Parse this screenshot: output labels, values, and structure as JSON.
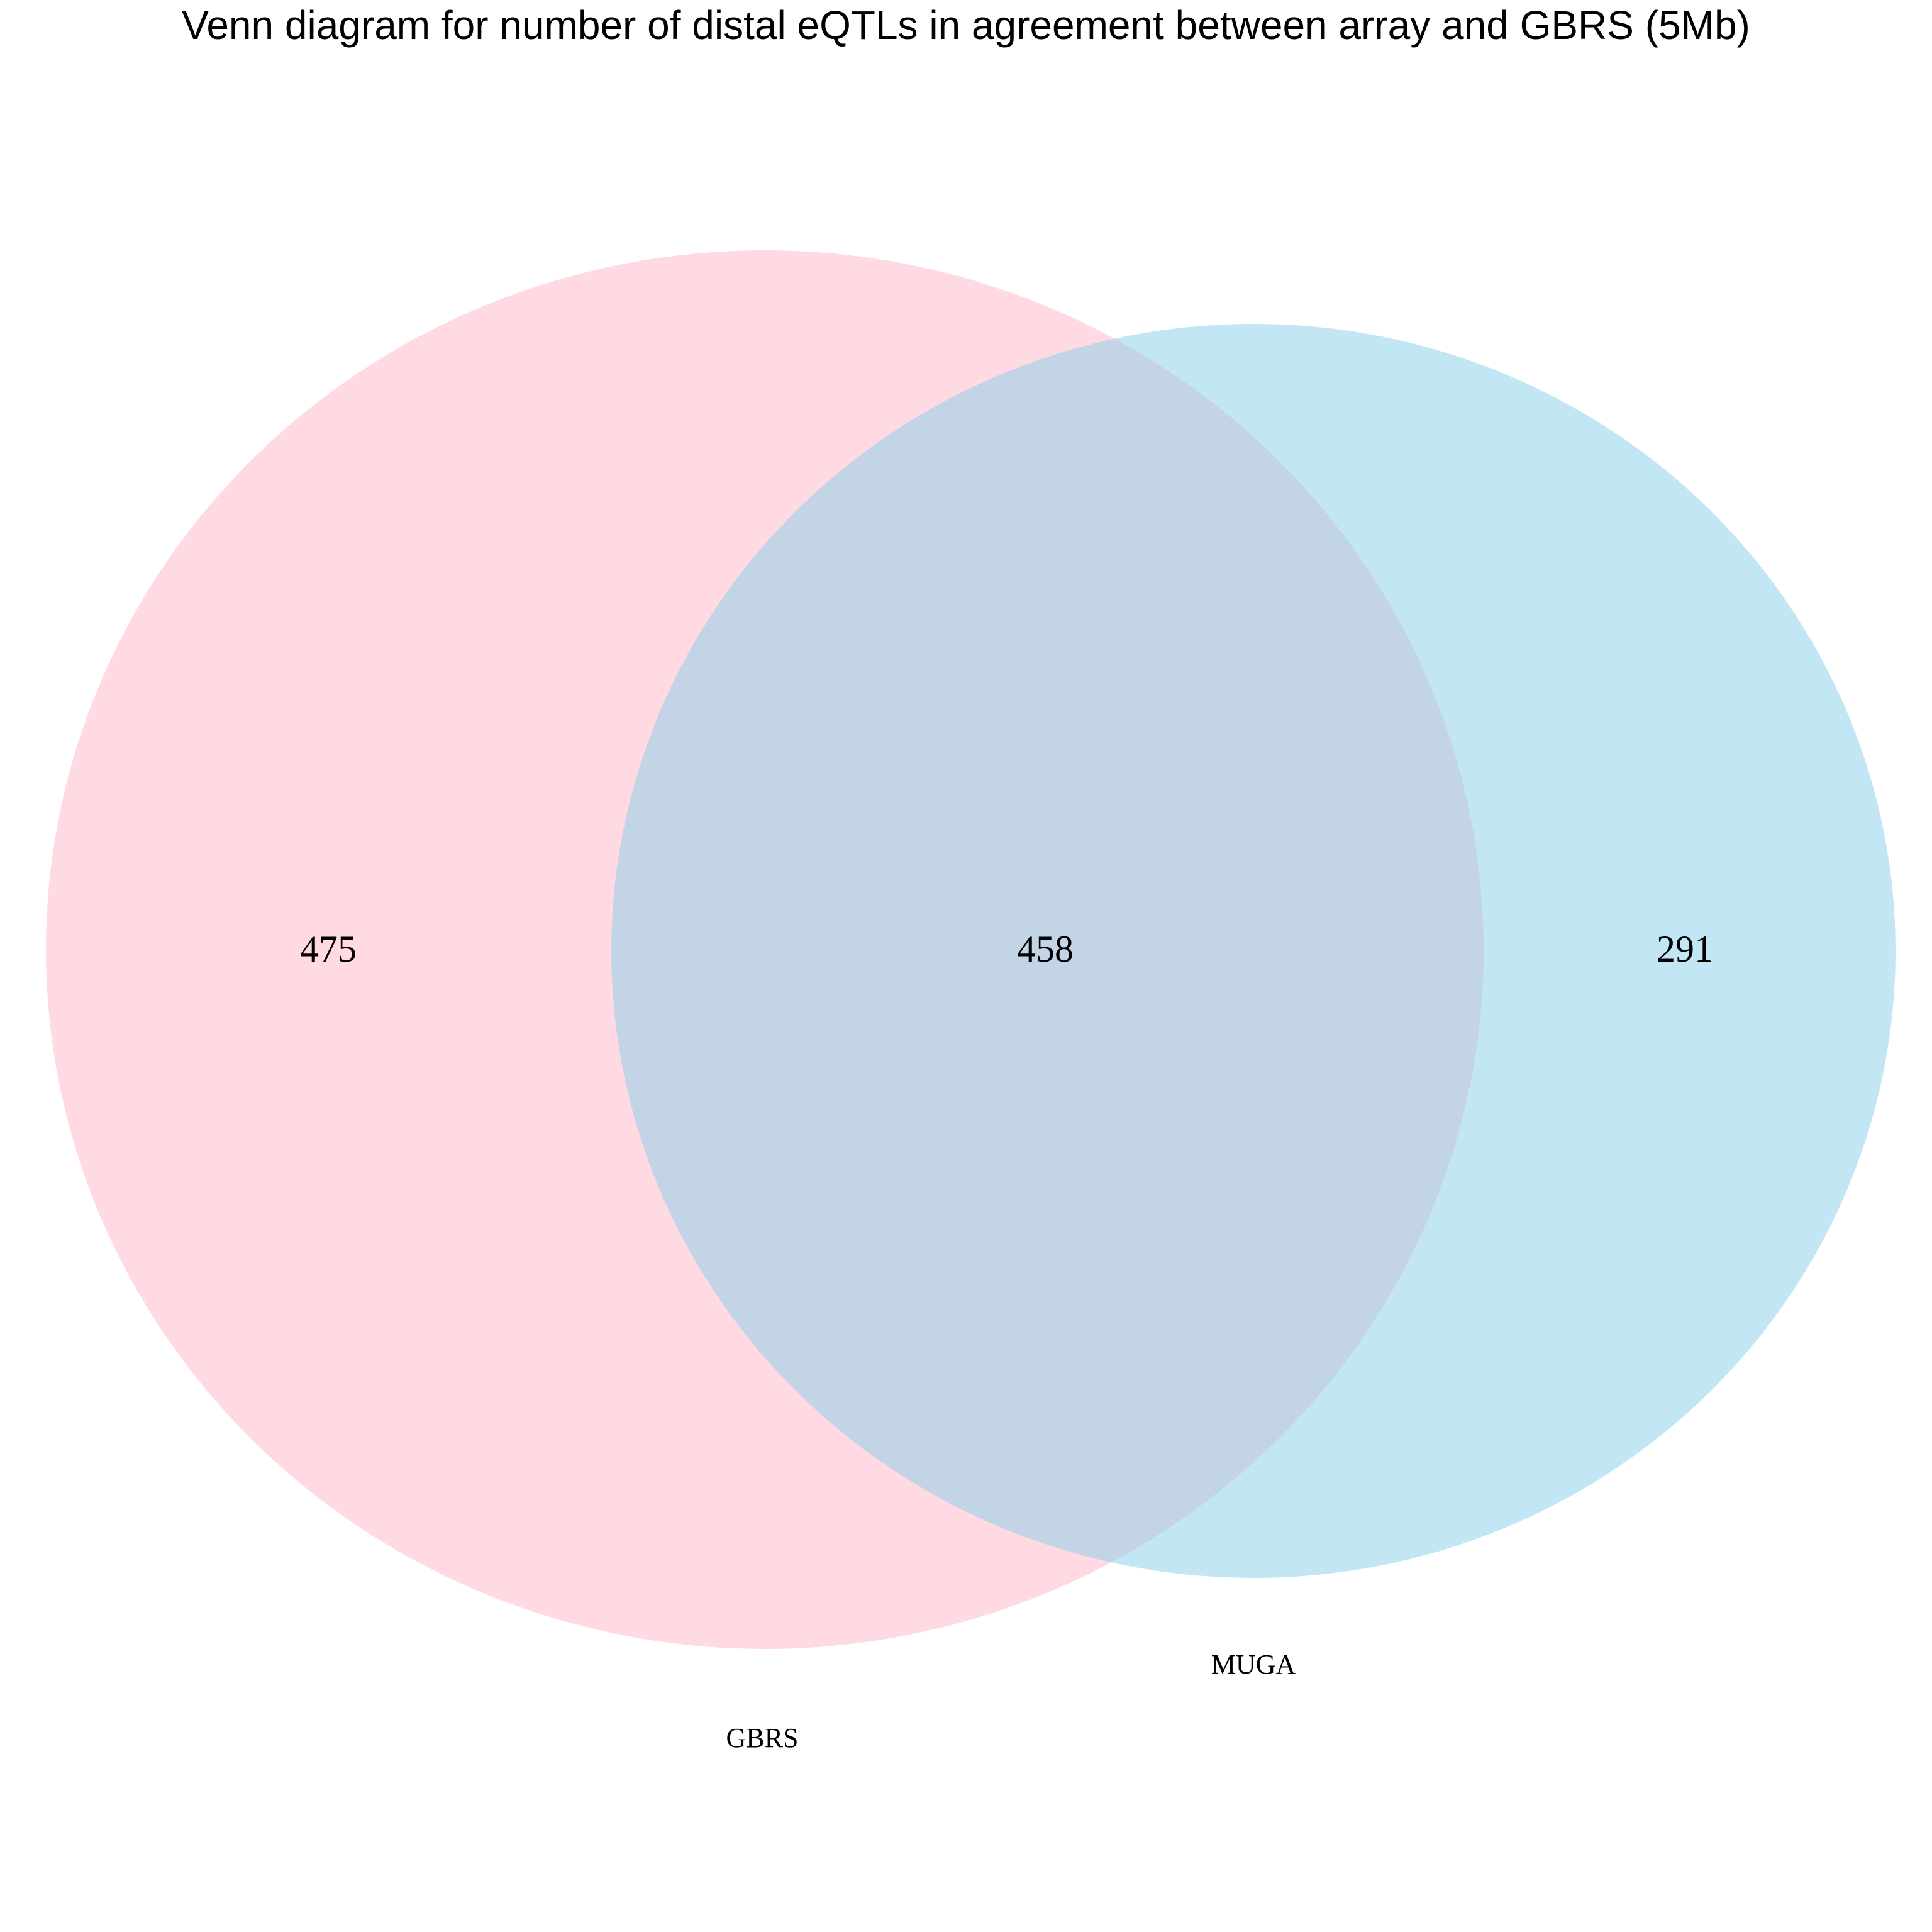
{
  "title": "Venn diagram for number of distal eQTLs in agreement between array and GBRS (5Mb)",
  "sets": [
    {
      "label": "GBRS",
      "color": "#FFB6C8",
      "only_count": "475"
    },
    {
      "label": "MUGA",
      "color": "#87CEEB",
      "only_count": "291"
    }
  ],
  "intersection_count": "458",
  "chart_data": {
    "type": "venn",
    "title": "Venn diagram for number of distal eQTLs in agreement between array and GBRS (5Mb)",
    "sets": [
      "GBRS",
      "MUGA"
    ],
    "regions": [
      {
        "sets": [
          "GBRS"
        ],
        "value": 475
      },
      {
        "sets": [
          "GBRS",
          "MUGA"
        ],
        "value": 458
      },
      {
        "sets": [
          "MUGA"
        ],
        "value": 291
      }
    ]
  }
}
